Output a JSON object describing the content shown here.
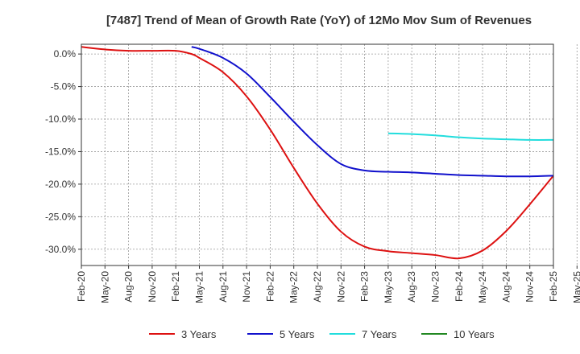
{
  "chart_data": {
    "type": "line",
    "title": "[7487]  Trend of Mean of Growth Rate (YoY) of 12Mo Mov Sum of Revenues",
    "xlabel": "",
    "ylabel": "",
    "x_index_range": [
      0,
      20
    ],
    "ylim": [
      -32.5,
      1.5
    ],
    "grid": true,
    "legend_position": "bottom",
    "x_ticks": [
      "Feb-20",
      "May-20",
      "Aug-20",
      "Nov-20",
      "Feb-21",
      "May-21",
      "Aug-21",
      "Nov-21",
      "Feb-22",
      "May-22",
      "Aug-22",
      "Nov-22",
      "Feb-23",
      "May-23",
      "Aug-23",
      "Nov-23",
      "Feb-24",
      "May-24",
      "Aug-24",
      "Nov-24",
      "Feb-25",
      "May-25"
    ],
    "y_ticks": [
      {
        "value": 0,
        "label": "0.0%"
      },
      {
        "value": -5,
        "label": "-5.0%"
      },
      {
        "value": -10,
        "label": "-10.0%"
      },
      {
        "value": -15,
        "label": "-15.0%"
      },
      {
        "value": -20,
        "label": "-20.0%"
      },
      {
        "value": -25,
        "label": "-25.0%"
      },
      {
        "value": -30,
        "label": "-30.0%"
      }
    ],
    "series": [
      {
        "name": "3 Years",
        "color": "#dd1111",
        "points": [
          [
            0,
            1.1
          ],
          [
            1,
            0.7
          ],
          [
            2,
            0.5
          ],
          [
            3,
            0.5
          ],
          [
            4,
            0.5
          ],
          [
            4.67,
            0.0
          ],
          [
            5,
            -0.6
          ],
          [
            6,
            -2.8
          ],
          [
            7,
            -6.5
          ],
          [
            8,
            -11.6
          ],
          [
            9,
            -17.5
          ],
          [
            10,
            -23.0
          ],
          [
            11,
            -27.3
          ],
          [
            12,
            -29.6
          ],
          [
            13,
            -30.3
          ],
          [
            14,
            -30.6
          ],
          [
            15,
            -30.9
          ],
          [
            16,
            -31.4
          ],
          [
            17,
            -30.2
          ],
          [
            18,
            -27.2
          ],
          [
            19,
            -23.1
          ],
          [
            20,
            -18.7
          ]
        ]
      },
      {
        "name": "5 Years",
        "color": "#1111cc",
        "points": [
          [
            4.67,
            1.1
          ],
          [
            5,
            0.8
          ],
          [
            6,
            -0.6
          ],
          [
            7,
            -3.0
          ],
          [
            8,
            -6.6
          ],
          [
            9,
            -10.4
          ],
          [
            10,
            -14.0
          ],
          [
            11,
            -16.9
          ],
          [
            12,
            -17.9
          ],
          [
            13,
            -18.1
          ],
          [
            14,
            -18.2
          ],
          [
            15,
            -18.4
          ],
          [
            16,
            -18.6
          ],
          [
            17,
            -18.7
          ],
          [
            18,
            -18.8
          ],
          [
            19,
            -18.8
          ],
          [
            20,
            -18.7
          ]
        ]
      },
      {
        "name": "7 Years",
        "color": "#22dddd",
        "points": [
          [
            13,
            -12.2
          ],
          [
            14,
            -12.3
          ],
          [
            15,
            -12.5
          ],
          [
            16,
            -12.8
          ],
          [
            17,
            -13.0
          ],
          [
            18,
            -13.1
          ],
          [
            19,
            -13.2
          ],
          [
            20,
            -13.2
          ]
        ]
      },
      {
        "name": "10 Years",
        "color": "#228822",
        "points": []
      }
    ]
  }
}
